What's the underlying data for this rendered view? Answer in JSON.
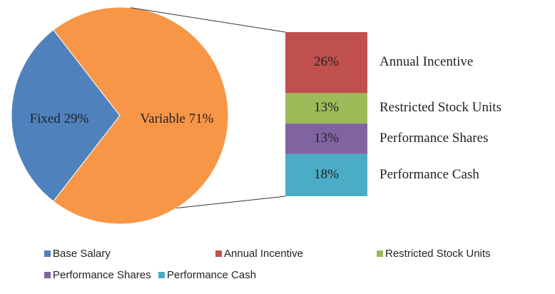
{
  "chart_data": {
    "type": "pie-of-bar",
    "pie": {
      "categories": [
        "Fixed",
        "Variable"
      ],
      "values": [
        29,
        71
      ],
      "value_labels": [
        "29%",
        "71%"
      ],
      "colors": [
        "#4f81bd",
        "#f79646"
      ]
    },
    "bar": {
      "categories": [
        "Annual Incentive",
        "Restricted Stock Units",
        "Performance Shares",
        "Performance Cash"
      ],
      "values": [
        26,
        13,
        13,
        18
      ],
      "value_labels": [
        "26%",
        "13%",
        "13%",
        "18%"
      ],
      "colors": [
        "#c0504d",
        "#9bbb59",
        "#8064a2",
        "#4bacc6"
      ]
    },
    "legend": [
      {
        "name": "Base Salary",
        "color": "#4f81bd"
      },
      {
        "name": "Annual Incentive",
        "color": "#c0504d"
      },
      {
        "name": "Restricted Stock Units",
        "color": "#9bbb59"
      },
      {
        "name": "Performance Shares",
        "color": "#8064a2"
      },
      {
        "name": "Performance Cash",
        "color": "#4bacc6"
      }
    ]
  }
}
